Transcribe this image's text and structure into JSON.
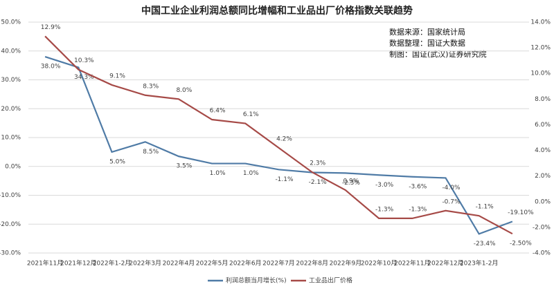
{
  "chart_data": {
    "type": "line",
    "title": "中国工业企业利润总额同比增幅和工业品出厂价格指数关联趋势",
    "annotations": [
      "数据来源：国家统计局",
      "数据整理：国证大数据",
      "制图：国证(武汉)证券研究院"
    ],
    "categories": [
      "2021年11月",
      "2021年12月",
      "2022年1-2月",
      "2022年3月",
      "2022年4月",
      "2022年5月",
      "2022年6月",
      "2022年7月",
      "2022年8月",
      "2022年9月",
      "2022年10月",
      "2022年11月",
      "2022年12月",
      "2023年1-2月",
      null
    ],
    "series": [
      {
        "name": "利润总额当月增长(%)",
        "color": "#4f7ba6",
        "values": [
          38.0,
          34.3,
          5.0,
          8.5,
          3.5,
          1.0,
          1.0,
          -1.1,
          -2.1,
          -2.3,
          -3.0,
          -3.6,
          -4.0,
          -23.4,
          -19.1
        ],
        "value_labels": [
          "38.0%",
          "34.3%",
          "5.0%",
          "8.5%",
          "3.5%",
          "1.0%",
          "1.0%",
          "-1.1%",
          "-2.1%",
          "-2.3%",
          "-3.0%",
          "-3.6%",
          "-4.0%",
          "-23.4%",
          "-19.10%"
        ]
      },
      {
        "name": "工业品出厂价格",
        "color": "#a64a47",
        "axis": "y2",
        "values": [
          12.9,
          10.3,
          9.1,
          8.3,
          8.0,
          6.4,
          6.1,
          4.2,
          2.3,
          0.9,
          -1.3,
          -1.3,
          -0.7,
          -1.1,
          -2.5
        ],
        "value_labels": [
          "12.9%",
          "10.3%",
          "9.1%",
          "8.3%",
          "8.0%",
          "6.4%",
          "6.1%",
          "4.2%",
          "2.3%",
          "0.9%",
          "-1.3%",
          "-1.3%",
          "-0.7%",
          "-1.1%",
          "-2.50%"
        ]
      }
    ],
    "ylim": [
      -30,
      50
    ],
    "yticks": [
      {
        "value": -30,
        "label": "-30.0%"
      },
      {
        "value": -20,
        "label": "-20.0%"
      },
      {
        "value": -10,
        "label": "-10.0%"
      },
      {
        "value": 0,
        "label": "0.0%"
      },
      {
        "value": 10,
        "label": "10.0%"
      },
      {
        "value": 20,
        "label": "20.0%"
      },
      {
        "value": 30,
        "label": "30.0%"
      },
      {
        "value": 40,
        "label": "40.0%"
      },
      {
        "value": 50,
        "label": "50.0%"
      }
    ],
    "y2lim": [
      -4,
      14
    ],
    "y2ticks": [
      {
        "value": -4,
        "label": "-4.0%"
      },
      {
        "value": -2,
        "label": "-2.0%"
      },
      {
        "value": 0,
        "label": "0.0%"
      },
      {
        "value": 2,
        "label": "2.0%"
      },
      {
        "value": 4,
        "label": "4.0%"
      },
      {
        "value": 6,
        "label": "6.0%"
      },
      {
        "value": 8,
        "label": "8.0%"
      },
      {
        "value": 10,
        "label": "10.0%"
      },
      {
        "value": 12,
        "label": "12.0%"
      },
      {
        "value": 14,
        "label": "14.0%"
      }
    ],
    "grid": true,
    "legend": "bottom"
  }
}
